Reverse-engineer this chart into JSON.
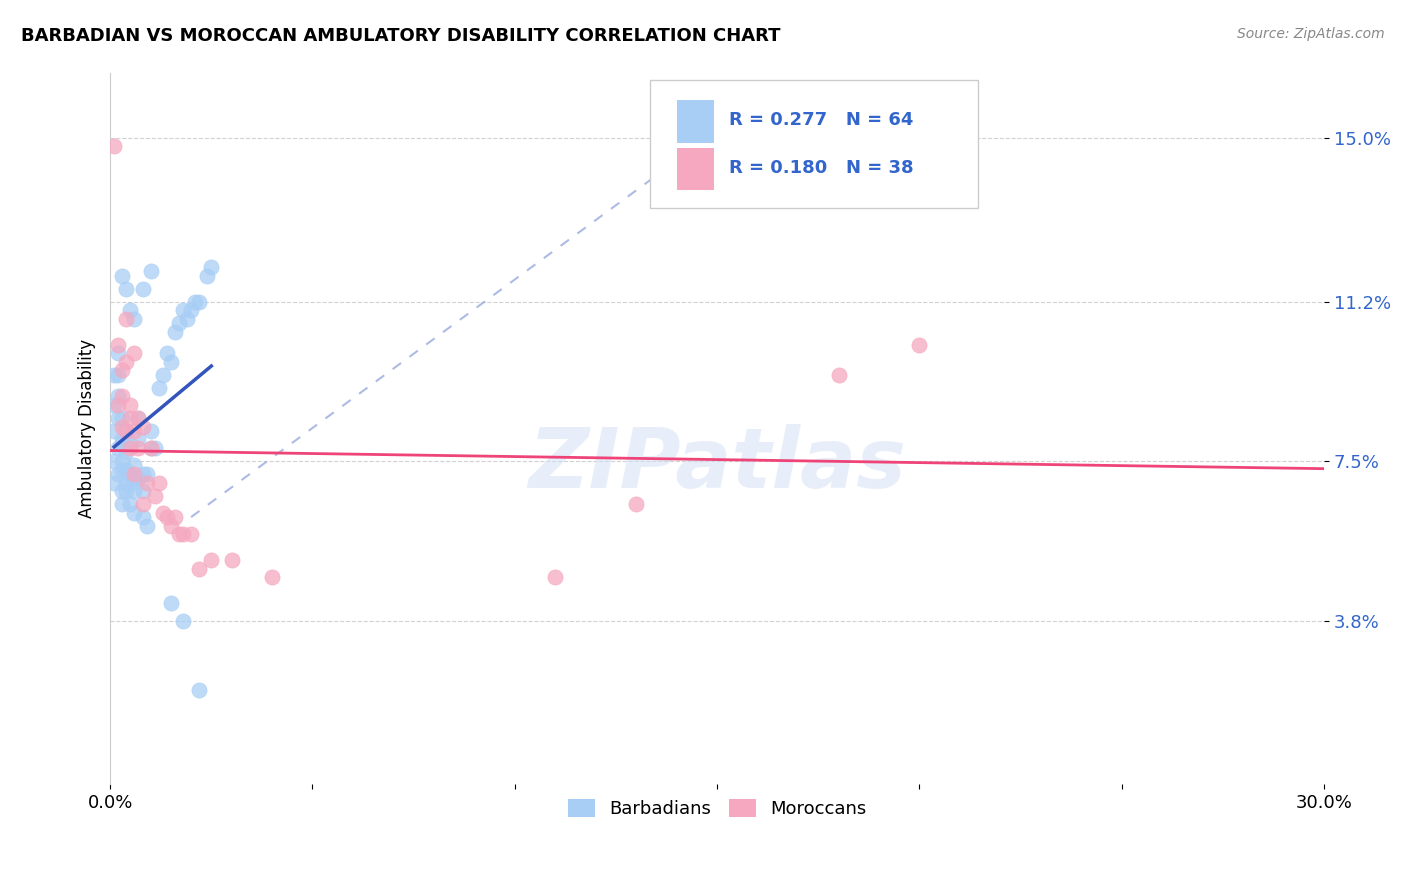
{
  "title": "BARBADIAN VS MOROCCAN AMBULATORY DISABILITY CORRELATION CHART",
  "source": "Source: ZipAtlas.com",
  "ylabel": "Ambulatory Disability",
  "watermark": "ZIPatlas",
  "xlim": [
    0.0,
    0.3
  ],
  "ylim": [
    0.0,
    0.165
  ],
  "xtick_pos": [
    0.0,
    0.05,
    0.1,
    0.15,
    0.2,
    0.25,
    0.3
  ],
  "xtick_labels": [
    "0.0%",
    "",
    "",
    "",
    "",
    "",
    "30.0%"
  ],
  "ytick_pos": [
    0.038,
    0.075,
    0.112,
    0.15
  ],
  "ytick_labels": [
    "3.8%",
    "7.5%",
    "11.2%",
    "15.0%"
  ],
  "R_barbadian": 0.277,
  "N_barbadian": 64,
  "R_moroccan": 0.18,
  "N_moroccan": 38,
  "color_barbadian": "#a8cef5",
  "color_moroccan": "#f5a8c0",
  "color_trend_barbadian": "#3355bb",
  "color_trend_moroccan": "#ee4477",
  "color_diag": "#99aade",
  "background_color": "#ffffff",
  "grid_color": "#cccccc",
  "barbadian_x": [
    0.001,
    0.001,
    0.001,
    0.001,
    0.001,
    0.002,
    0.002,
    0.002,
    0.002,
    0.002,
    0.002,
    0.003,
    0.003,
    0.003,
    0.003,
    0.003,
    0.003,
    0.003,
    0.004,
    0.004,
    0.004,
    0.004,
    0.004,
    0.005,
    0.005,
    0.005,
    0.005,
    0.006,
    0.006,
    0.006,
    0.006,
    0.007,
    0.007,
    0.007,
    0.008,
    0.008,
    0.008,
    0.009,
    0.009,
    0.01,
    0.01,
    0.011,
    0.012,
    0.013,
    0.014,
    0.015,
    0.016,
    0.017,
    0.018,
    0.019,
    0.02,
    0.021,
    0.022,
    0.024,
    0.025,
    0.003,
    0.004,
    0.005,
    0.006,
    0.008,
    0.01,
    0.015,
    0.018,
    0.022
  ],
  "barbadian_y": [
    0.075,
    0.082,
    0.088,
    0.07,
    0.095,
    0.09,
    0.085,
    0.095,
    0.1,
    0.078,
    0.072,
    0.08,
    0.075,
    0.073,
    0.068,
    0.085,
    0.079,
    0.065,
    0.073,
    0.077,
    0.07,
    0.068,
    0.082,
    0.07,
    0.072,
    0.065,
    0.079,
    0.068,
    0.074,
    0.071,
    0.063,
    0.071,
    0.085,
    0.08,
    0.062,
    0.068,
    0.072,
    0.06,
    0.072,
    0.078,
    0.082,
    0.078,
    0.092,
    0.095,
    0.1,
    0.098,
    0.105,
    0.107,
    0.11,
    0.108,
    0.11,
    0.112,
    0.112,
    0.118,
    0.12,
    0.118,
    0.115,
    0.11,
    0.108,
    0.115,
    0.119,
    0.042,
    0.038,
    0.022
  ],
  "moroccan_x": [
    0.001,
    0.002,
    0.002,
    0.003,
    0.003,
    0.003,
    0.004,
    0.004,
    0.005,
    0.005,
    0.006,
    0.006,
    0.007,
    0.007,
    0.008,
    0.009,
    0.01,
    0.011,
    0.012,
    0.013,
    0.014,
    0.015,
    0.016,
    0.017,
    0.018,
    0.02,
    0.022,
    0.025,
    0.03,
    0.04,
    0.18,
    0.2,
    0.11,
    0.13,
    0.004,
    0.005,
    0.006,
    0.008
  ],
  "moroccan_y": [
    0.148,
    0.102,
    0.088,
    0.09,
    0.096,
    0.083,
    0.082,
    0.098,
    0.078,
    0.088,
    0.072,
    0.082,
    0.078,
    0.085,
    0.083,
    0.07,
    0.078,
    0.067,
    0.07,
    0.063,
    0.062,
    0.06,
    0.062,
    0.058,
    0.058,
    0.058,
    0.05,
    0.052,
    0.052,
    0.048,
    0.095,
    0.102,
    0.048,
    0.065,
    0.108,
    0.085,
    0.1,
    0.065
  ]
}
